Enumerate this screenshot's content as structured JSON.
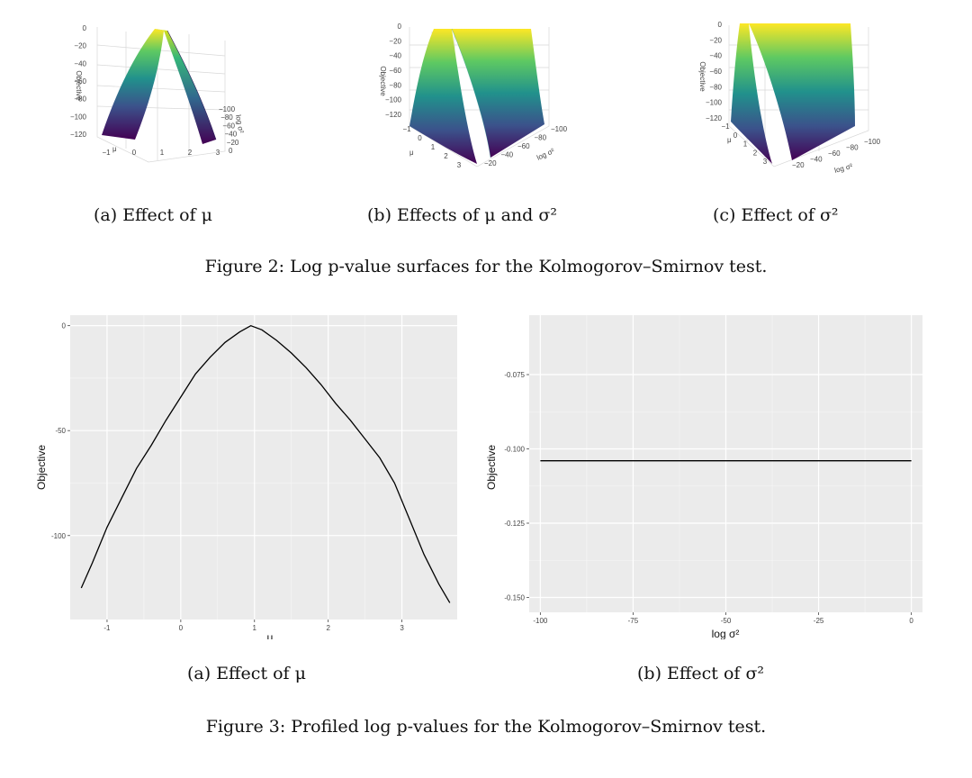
{
  "figure2": {
    "caption": "Figure 2: Log p-value surfaces for the Kolmogorov–Smirnov test.",
    "panels": [
      {
        "sublabel": "(a) Effect of μ",
        "zlabel": "Objective",
        "axis1": "μ",
        "axis2": "log σ²",
        "zticks": [
          "0",
          "−20",
          "−40",
          "−60",
          "−80",
          "−100",
          "−120"
        ],
        "axis1_ticks": [
          "−1",
          "0",
          "1",
          "2",
          "3"
        ],
        "axis2_ticks": [
          "−100",
          "−80",
          "−60",
          "−40",
          "−20",
          "0"
        ]
      },
      {
        "sublabel": "(b) Effects of μ and σ²",
        "zlabel": "Objective",
        "axis1": "μ",
        "axis2": "log σ²",
        "zticks": [
          "0",
          "−20",
          "−40",
          "−60",
          "−80",
          "−100",
          "−120"
        ],
        "axis1_ticks": [
          "−1",
          "0",
          "1",
          "2",
          "3"
        ],
        "axis2_ticks": [
          "−100",
          "−80",
          "−60",
          "−40",
          "−20"
        ]
      },
      {
        "sublabel": "(c) Effect of σ²",
        "zlabel": "Objective",
        "axis1": "μ",
        "axis2": "log σ²",
        "zticks": [
          "0",
          "−20",
          "−40",
          "−60",
          "−80",
          "−100",
          "−120"
        ],
        "axis1_ticks": [
          "−1",
          "0",
          "1",
          "2",
          "3"
        ],
        "axis2_ticks": [
          "−100",
          "−80",
          "−60",
          "−40",
          "−20"
        ]
      }
    ]
  },
  "figure3": {
    "caption": "Figure 3: Profiled log p-values for the Kolmogorov–Smirnov test.",
    "sublabel_a": "(a) Effect of μ",
    "sublabel_b": "(b) Effect of σ²"
  },
  "chart_data": [
    {
      "type": "line",
      "xlabel": "μ",
      "ylabel": "Objective",
      "xlim": [
        -1.5,
        3.75
      ],
      "ylim": [
        -140,
        5
      ],
      "xticks": [
        -1,
        0,
        1,
        2,
        3
      ],
      "yticks": [
        0,
        -50,
        -100
      ],
      "grid": true,
      "series": [
        {
          "x": [
            -1.35,
            -1.2,
            -1.0,
            -0.8,
            -0.6,
            -0.4,
            -0.2,
            0.0,
            0.2,
            0.4,
            0.6,
            0.8,
            0.95,
            1.1,
            1.3,
            1.5,
            1.7,
            1.9,
            2.1,
            2.3,
            2.5,
            2.7,
            2.9,
            3.1,
            3.3,
            3.5,
            3.65
          ],
          "y": [
            -125,
            -113,
            -96,
            -82,
            -68,
            -57,
            -45,
            -34,
            -23,
            -15,
            -8,
            -3,
            0,
            -2,
            -7,
            -13,
            -20,
            -28,
            -37,
            -45,
            -54,
            -63,
            -75,
            -92,
            -109,
            -123,
            -132
          ]
        }
      ]
    },
    {
      "type": "line",
      "xlabel": "log σ²",
      "ylabel": "Objective",
      "xlim": [
        -103,
        3
      ],
      "ylim": [
        -0.155,
        -0.055
      ],
      "xticks": [
        -100,
        -75,
        -50,
        -25,
        0
      ],
      "yticks": [
        -0.075,
        -0.1,
        -0.125,
        -0.15
      ],
      "ytick_labels": [
        "-0.075",
        "-0.100",
        "-0.125",
        "-0.150"
      ],
      "grid": true,
      "series": [
        {
          "x": [
            -100,
            0
          ],
          "y": [
            -0.104,
            -0.104
          ]
        }
      ]
    }
  ],
  "colors": {
    "panel_bg": "#ebebeb",
    "grid": "#ffffff",
    "line": "#000000",
    "viridis": [
      "#440154",
      "#3b528b",
      "#21918c",
      "#5ec962",
      "#fde725"
    ]
  }
}
